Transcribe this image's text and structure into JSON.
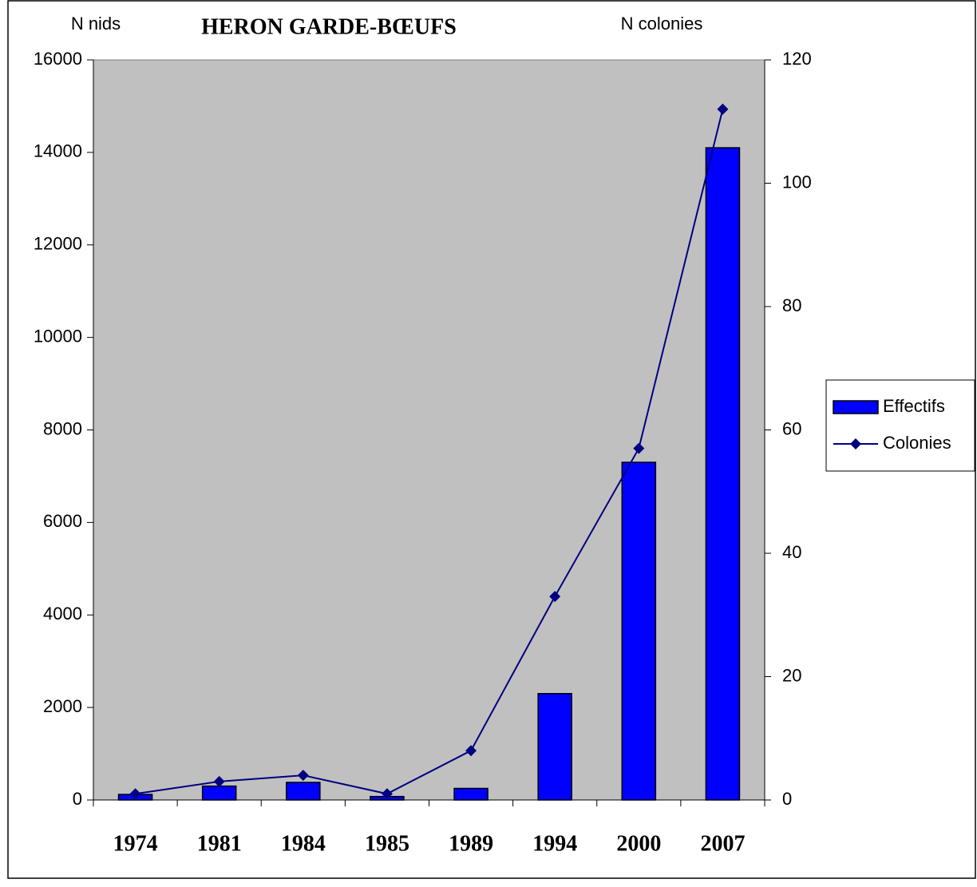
{
  "chart_data": {
    "type": "bar",
    "title": "HERON GARDE-BŒUFS",
    "y_label": "N nids",
    "y2_label": "N colonies",
    "categories": [
      "1974",
      "1981",
      "1984",
      "1985",
      "1989",
      "1994",
      "2000",
      "2007"
    ],
    "series": [
      {
        "name": "Effectifs",
        "type": "bar",
        "color": "#0000ff",
        "values": [
          120,
          300,
          380,
          75,
          250,
          2300,
          7300,
          14100
        ]
      },
      {
        "name": "Colonies",
        "type": "line",
        "color": "#000080",
        "axis": "y2",
        "values": [
          1,
          3,
          4,
          1,
          8,
          33,
          57,
          112
        ]
      }
    ],
    "ylim": [
      0,
      16000
    ],
    "yticks": [
      0,
      2000,
      4000,
      6000,
      8000,
      10000,
      12000,
      14000,
      16000
    ],
    "y2lim": [
      0,
      120
    ],
    "y2ticks": [
      0,
      20,
      40,
      60,
      80,
      100,
      120
    ],
    "grid": false,
    "legend": "right",
    "plot_background": "#c0c0c0"
  }
}
